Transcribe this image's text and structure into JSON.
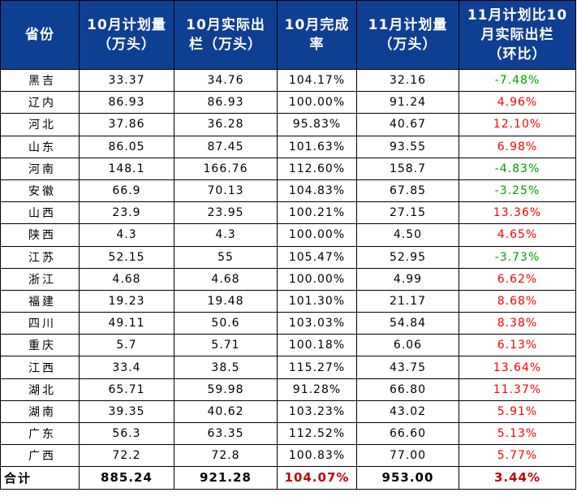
{
  "table": {
    "headers": [
      "省份",
      "10月计划量\n（万头）",
      "10月实际出\n栏（万头）",
      "10月完成\n率",
      "11月计划量\n（万头）",
      "11月计划比10\n月实际出栏\n（环比）"
    ],
    "rows": [
      {
        "province": "黑吉",
        "oct_plan": "33.37",
        "oct_actual": "34.76",
        "oct_rate": "104.17%",
        "nov_plan": "32.16",
        "mom": "-7.48%",
        "trend": "down"
      },
      {
        "province": "辽内",
        "oct_plan": "86.93",
        "oct_actual": "86.93",
        "oct_rate": "100.00%",
        "nov_plan": "91.24",
        "mom": "4.96%",
        "trend": "up"
      },
      {
        "province": "河北",
        "oct_plan": "37.86",
        "oct_actual": "36.28",
        "oct_rate": "95.83%",
        "nov_plan": "40.67",
        "mom": "12.10%",
        "trend": "up"
      },
      {
        "province": "山东",
        "oct_plan": "86.05",
        "oct_actual": "87.45",
        "oct_rate": "101.63%",
        "nov_plan": "93.55",
        "mom": "6.98%",
        "trend": "up"
      },
      {
        "province": "河南",
        "oct_plan": "148.1",
        "oct_actual": "166.76",
        "oct_rate": "112.60%",
        "nov_plan": "158.7",
        "mom": "-4.83%",
        "trend": "down"
      },
      {
        "province": "安徽",
        "oct_plan": "66.9",
        "oct_actual": "70.13",
        "oct_rate": "104.83%",
        "nov_plan": "67.85",
        "mom": "-3.25%",
        "trend": "down"
      },
      {
        "province": "山西",
        "oct_plan": "23.9",
        "oct_actual": "23.95",
        "oct_rate": "100.21%",
        "nov_plan": "27.15",
        "mom": "13.36%",
        "trend": "up"
      },
      {
        "province": "陕西",
        "oct_plan": "4.3",
        "oct_actual": "4.3",
        "oct_rate": "100.00%",
        "nov_plan": "4.50",
        "mom": "4.65%",
        "trend": "up"
      },
      {
        "province": "江苏",
        "oct_plan": "52.15",
        "oct_actual": "55",
        "oct_rate": "105.47%",
        "nov_plan": "52.95",
        "mom": "-3.73%",
        "trend": "down"
      },
      {
        "province": "浙江",
        "oct_plan": "4.68",
        "oct_actual": "4.68",
        "oct_rate": "100.00%",
        "nov_plan": "4.99",
        "mom": "6.62%",
        "trend": "up"
      },
      {
        "province": "福建",
        "oct_plan": "19.23",
        "oct_actual": "19.48",
        "oct_rate": "101.30%",
        "nov_plan": "21.17",
        "mom": "8.68%",
        "trend": "up"
      },
      {
        "province": "四川",
        "oct_plan": "49.11",
        "oct_actual": "50.6",
        "oct_rate": "103.03%",
        "nov_plan": "54.84",
        "mom": "8.38%",
        "trend": "up"
      },
      {
        "province": "重庆",
        "oct_plan": "5.7",
        "oct_actual": "5.71",
        "oct_rate": "100.18%",
        "nov_plan": "6.06",
        "mom": "6.13%",
        "trend": "up"
      },
      {
        "province": "江西",
        "oct_plan": "33.4",
        "oct_actual": "38.5",
        "oct_rate": "115.27%",
        "nov_plan": "43.75",
        "mom": "13.64%",
        "trend": "up"
      },
      {
        "province": "湖北",
        "oct_plan": "65.71",
        "oct_actual": "59.98",
        "oct_rate": "91.28%",
        "nov_plan": "66.80",
        "mom": "11.37%",
        "trend": "up"
      },
      {
        "province": "湖南",
        "oct_plan": "39.35",
        "oct_actual": "40.62",
        "oct_rate": "103.23%",
        "nov_plan": "43.02",
        "mom": "5.91%",
        "trend": "up"
      },
      {
        "province": "广东",
        "oct_plan": "56.3",
        "oct_actual": "63.35",
        "oct_rate": "112.52%",
        "nov_plan": "66.60",
        "mom": "5.13%",
        "trend": "up"
      },
      {
        "province": "广西",
        "oct_plan": "72.2",
        "oct_actual": "72.8",
        "oct_rate": "100.83%",
        "nov_plan": "77.00",
        "mom": "5.77%",
        "trend": "up"
      }
    ],
    "total": {
      "province": "合计",
      "oct_plan": "885.24",
      "oct_actual": "921.28",
      "oct_rate": "104.07%",
      "nov_plan": "953.00",
      "mom": "3.44%"
    }
  },
  "colors": {
    "header_bg": "#0f3f93",
    "header_text": "#ffffff",
    "increase": "#ff0000",
    "decrease": "#00a000",
    "total_highlight": "#c00000"
  }
}
